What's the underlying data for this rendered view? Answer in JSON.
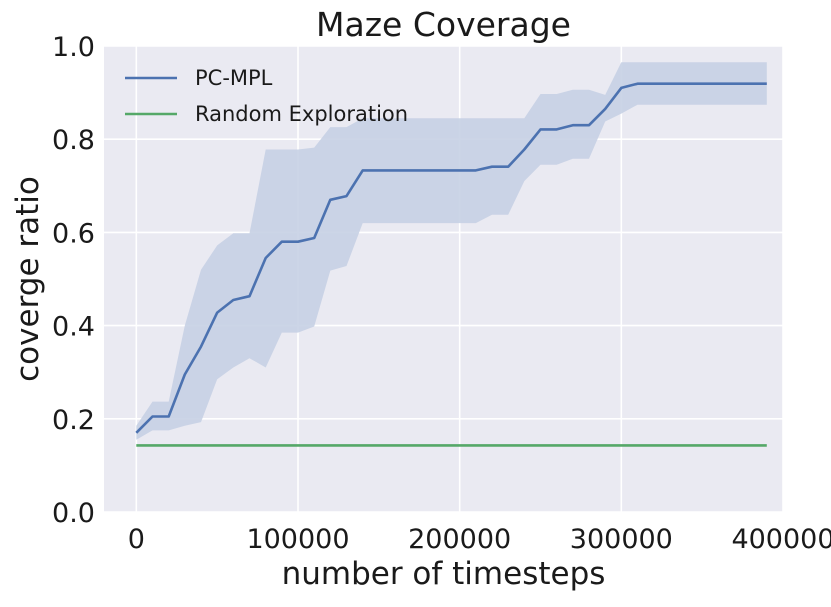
{
  "chart_data": {
    "type": "line",
    "title": "Maze Coverage",
    "xlabel": "number of timesteps",
    "ylabel": "coverge ratio",
    "xlim": [
      -20000,
      400000
    ],
    "ylim": [
      0.0,
      1.0
    ],
    "xticks": [
      0,
      100000,
      200000,
      300000,
      400000
    ],
    "xtick_labels": [
      "0",
      "100000",
      "200000",
      "300000",
      "400000"
    ],
    "yticks": [
      0.0,
      0.2,
      0.4,
      0.6,
      0.8,
      1.0
    ],
    "ytick_labels": [
      "0.0",
      "0.2",
      "0.4",
      "0.6",
      "0.8",
      "1.0"
    ],
    "grid": true,
    "legend_position": "top-left",
    "background": "#eaeaf2",
    "series": [
      {
        "name": "PC-MPL",
        "color": "#4c72b0",
        "band_color": "#c6d0e4",
        "x": [
          0,
          10000,
          20000,
          30000,
          40000,
          50000,
          60000,
          70000,
          80000,
          90000,
          100000,
          110000,
          120000,
          130000,
          140000,
          150000,
          160000,
          170000,
          180000,
          190000,
          200000,
          210000,
          220000,
          230000,
          240000,
          250000,
          260000,
          270000,
          280000,
          290000,
          300000,
          310000,
          320000,
          330000,
          340000,
          350000,
          360000,
          370000,
          380000,
          390000
        ],
        "y": [
          0.17,
          0.205,
          0.205,
          0.295,
          0.355,
          0.428,
          0.455,
          0.463,
          0.545,
          0.58,
          0.58,
          0.588,
          0.67,
          0.678,
          0.733,
          0.733,
          0.733,
          0.733,
          0.733,
          0.733,
          0.733,
          0.733,
          0.741,
          0.741,
          0.778,
          0.821,
          0.821,
          0.83,
          0.83,
          0.865,
          0.91,
          0.919,
          0.919,
          0.919,
          0.919,
          0.919,
          0.919,
          0.919,
          0.919,
          0.919
        ],
        "upper": [
          0.185,
          0.237,
          0.237,
          0.4,
          0.52,
          0.572,
          0.598,
          0.598,
          0.778,
          0.778,
          0.778,
          0.782,
          0.826,
          0.826,
          0.845,
          0.845,
          0.845,
          0.845,
          0.845,
          0.845,
          0.845,
          0.845,
          0.845,
          0.845,
          0.845,
          0.897,
          0.897,
          0.906,
          0.906,
          0.895,
          0.965,
          0.965,
          0.965,
          0.965,
          0.965,
          0.965,
          0.965,
          0.965,
          0.965,
          0.965
        ],
        "lower": [
          0.155,
          0.175,
          0.175,
          0.185,
          0.193,
          0.285,
          0.31,
          0.33,
          0.31,
          0.385,
          0.385,
          0.398,
          0.518,
          0.528,
          0.62,
          0.62,
          0.62,
          0.62,
          0.62,
          0.62,
          0.62,
          0.62,
          0.638,
          0.638,
          0.71,
          0.745,
          0.745,
          0.758,
          0.758,
          0.838,
          0.855,
          0.874,
          0.874,
          0.874,
          0.874,
          0.874,
          0.874,
          0.874,
          0.874,
          0.874
        ]
      },
      {
        "name": "Random Exploration",
        "color": "#55a868",
        "x": [
          0,
          390000
        ],
        "y": [
          0.143,
          0.143
        ]
      }
    ]
  }
}
